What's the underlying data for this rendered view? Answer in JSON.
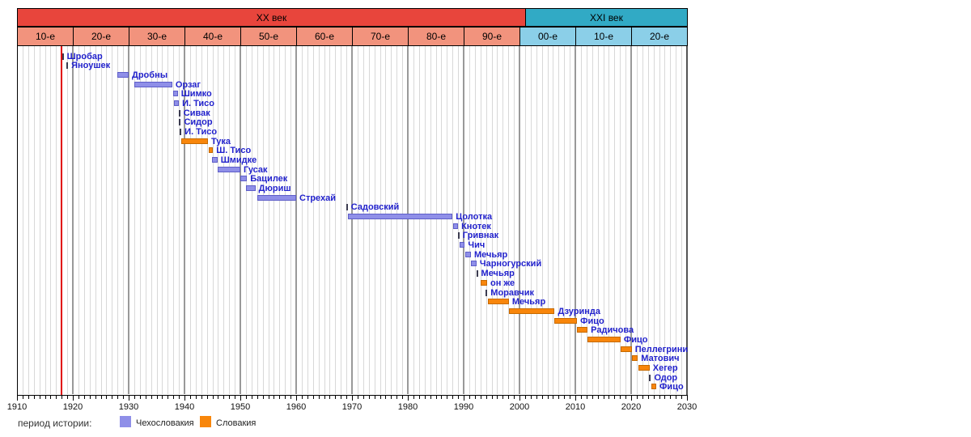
{
  "chart_data": {
    "type": "bar",
    "subtype": "gantt-timeline",
    "title": "",
    "xlabel": "",
    "ylabel": "",
    "x_range": [
      1910,
      2030
    ],
    "x_tick_step": 1,
    "x_label_step": 10,
    "x_tick_labels": [
      "1910",
      "1920",
      "1930",
      "1940",
      "1950",
      "1960",
      "1970",
      "1980",
      "1990",
      "2000",
      "2010",
      "2020",
      "2030"
    ],
    "grid": "vertical-yearly",
    "reference_line": {
      "year": 1918,
      "color": "#e00000"
    },
    "centuries": [
      {
        "label": "XX век",
        "start": 1910,
        "end": 2001,
        "band_color": "#e8453c",
        "decade_color": "#f2937d"
      },
      {
        "label": "XXI век",
        "start": 2001,
        "end": 2030,
        "band_color": "#31aac5",
        "decade_color": "#8bcfe8"
      }
    ],
    "decades": [
      {
        "label": "10-е",
        "start": 1910,
        "end": 1920,
        "century": 0
      },
      {
        "label": "20-е",
        "start": 1920,
        "end": 1930,
        "century": 0
      },
      {
        "label": "30-е",
        "start": 1930,
        "end": 1940,
        "century": 0
      },
      {
        "label": "40-е",
        "start": 1940,
        "end": 1950,
        "century": 0
      },
      {
        "label": "50-е",
        "start": 1950,
        "end": 1960,
        "century": 0
      },
      {
        "label": "60-е",
        "start": 1960,
        "end": 1970,
        "century": 0
      },
      {
        "label": "70-е",
        "start": 1970,
        "end": 1980,
        "century": 0
      },
      {
        "label": "80-е",
        "start": 1980,
        "end": 1990,
        "century": 0
      },
      {
        "label": "90-е",
        "start": 1990,
        "end": 2000,
        "century": 0
      },
      {
        "label": "00-е",
        "start": 2000,
        "end": 2010,
        "century": 1
      },
      {
        "label": "10-е",
        "start": 2010,
        "end": 2020,
        "century": 1
      },
      {
        "label": "20-е",
        "start": 2020,
        "end": 2030,
        "century": 1
      }
    ],
    "series_colors": {
      "Чехословакия": {
        "fill": "#8f8fe8",
        "border": "#5e5ec8"
      },
      "Словакия": {
        "fill": "#f8860b",
        "border": "#c66a00"
      },
      "tick": "#3c3c50"
    },
    "rows": [
      {
        "name": "Шробар",
        "period": "Чехословакия",
        "style": "tick",
        "start": 1918.2,
        "end": 1918.2
      },
      {
        "name": "Яноушек",
        "period": "Чехословакия",
        "style": "tick",
        "start": 1919.0,
        "end": 1919.0
      },
      {
        "name": "Дробны",
        "period": "Чехословакия",
        "style": "bar",
        "start": 1928.0,
        "end": 1930.0
      },
      {
        "name": "Орзаг",
        "period": "Чехословакия",
        "style": "bar",
        "start": 1931.0,
        "end": 1937.8
      },
      {
        "name": "Шимко",
        "period": "Чехословакия",
        "style": "bar",
        "start": 1938.0,
        "end": 1938.8
      },
      {
        "name": "И. Тисо",
        "period": "Чехословакия",
        "style": "bar",
        "start": 1938.1,
        "end": 1939.0
      },
      {
        "name": "Сивак",
        "period": "Чехословакия",
        "style": "tick",
        "start": 1939.1,
        "end": 1939.1
      },
      {
        "name": "Сидор",
        "period": "Чехословакия",
        "style": "tick",
        "start": 1939.2,
        "end": 1939.2
      },
      {
        "name": "И. Тисо",
        "period": "Словакия",
        "style": "tick",
        "start": 1939.3,
        "end": 1939.3
      },
      {
        "name": "Тука",
        "period": "Словакия",
        "style": "bar",
        "start": 1939.4,
        "end": 1944.2
      },
      {
        "name": "Ш. Тисо",
        "period": "Словакия",
        "style": "bar",
        "start": 1944.3,
        "end": 1945.1
      },
      {
        "name": "Шмидке",
        "period": "Чехословакия",
        "style": "bar",
        "start": 1944.9,
        "end": 1945.9
      },
      {
        "name": "Гусак",
        "period": "Чехословакия",
        "style": "bar",
        "start": 1946.0,
        "end": 1950.0
      },
      {
        "name": "Бацилек",
        "period": "Чехословакия",
        "style": "bar",
        "start": 1950.0,
        "end": 1951.2
      },
      {
        "name": "Дюриш",
        "period": "Чехословакия",
        "style": "bar",
        "start": 1951.0,
        "end": 1952.7
      },
      {
        "name": "Стрехай",
        "period": "Чехословакия",
        "style": "bar",
        "start": 1953.0,
        "end": 1960.0
      },
      {
        "name": "Садовский",
        "period": "Чехословакия",
        "style": "tick",
        "start": 1969.1,
        "end": 1969.1
      },
      {
        "name": "Цолотка",
        "period": "Чехословакия",
        "style": "bar",
        "start": 1969.3,
        "end": 1988.0
      },
      {
        "name": "Кнотек",
        "period": "Чехословакия",
        "style": "bar",
        "start": 1988.1,
        "end": 1989.0
      },
      {
        "name": "Гривнак",
        "period": "Чехословакия",
        "style": "tick",
        "start": 1989.1,
        "end": 1989.1
      },
      {
        "name": "Чич",
        "period": "Чехословакия",
        "style": "bar",
        "start": 1989.3,
        "end": 1990.2
      },
      {
        "name": "Мечьяр",
        "period": "Чехословакия",
        "style": "bar",
        "start": 1990.3,
        "end": 1991.3
      },
      {
        "name": "Чарногурский",
        "period": "Чехословакия",
        "style": "bar",
        "start": 1991.3,
        "end": 1992.3
      },
      {
        "name": "Мечьяр",
        "period": "Чехословакия",
        "style": "tick",
        "start": 1992.4,
        "end": 1992.4
      },
      {
        "name": "он же",
        "period": "Словакия",
        "style": "bar",
        "start": 1993.0,
        "end": 1994.2
      },
      {
        "name": "Моравчик",
        "period": "Словакия",
        "style": "tick",
        "start": 1994.1,
        "end": 1994.1
      },
      {
        "name": "Мечьяр",
        "period": "Словакия",
        "style": "bar",
        "start": 1994.4,
        "end": 1998.1
      },
      {
        "name": "Дзуринда",
        "period": "Словакия",
        "style": "bar",
        "start": 1998.1,
        "end": 2006.3
      },
      {
        "name": "Фицо",
        "period": "Словакия",
        "style": "bar",
        "start": 2006.3,
        "end": 2010.3
      },
      {
        "name": "Радичова",
        "period": "Словакия",
        "style": "bar",
        "start": 2010.3,
        "end": 2012.2
      },
      {
        "name": "Фицо",
        "period": "Словакия",
        "style": "bar",
        "start": 2012.2,
        "end": 2018.1
      },
      {
        "name": "Пеллегрини",
        "period": "Словакия",
        "style": "bar",
        "start": 2018.1,
        "end": 2020.1
      },
      {
        "name": "Матович",
        "period": "Словакия",
        "style": "bar",
        "start": 2020.2,
        "end": 2021.2
      },
      {
        "name": "Хегер",
        "period": "Словакия",
        "style": "bar",
        "start": 2021.3,
        "end": 2023.3
      },
      {
        "name": "Одор",
        "period": "Словакия",
        "style": "tick",
        "start": 2023.4,
        "end": 2023.4
      },
      {
        "name": "Фицо",
        "period": "Словакия",
        "style": "bar",
        "start": 2023.6,
        "end": 2024.5
      }
    ]
  },
  "legend": {
    "title": "период истории:",
    "items": [
      {
        "label": "Чехословакия",
        "color": "#8f8fe8"
      },
      {
        "label": "Словакия",
        "color": "#f8860b"
      }
    ]
  }
}
